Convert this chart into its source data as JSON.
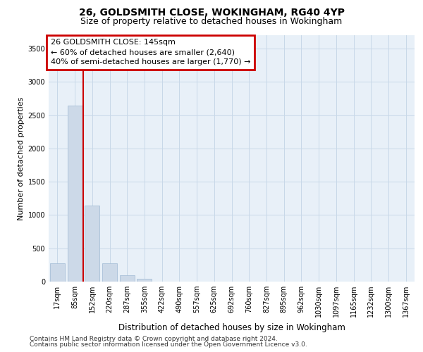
{
  "title_line1": "26, GOLDSMITH CLOSE, WOKINGHAM, RG40 4YP",
  "title_line2": "Size of property relative to detached houses in Wokingham",
  "xlabel": "Distribution of detached houses by size in Wokingham",
  "ylabel": "Number of detached properties",
  "bar_color": "#ccd9e8",
  "bar_edge_color": "#a8c0d8",
  "grid_color": "#c8d8e8",
  "background_color": "#e8f0f8",
  "annotation_text": "26 GOLDSMITH CLOSE: 145sqm\n← 60% of detached houses are smaller (2,640)\n40% of semi-detached houses are larger (1,770) →",
  "vline_color": "#cc0000",
  "vline_x": 1.5,
  "categories": [
    "17sqm",
    "85sqm",
    "152sqm",
    "220sqm",
    "287sqm",
    "355sqm",
    "422sqm",
    "490sqm",
    "557sqm",
    "625sqm",
    "692sqm",
    "760sqm",
    "827sqm",
    "895sqm",
    "962sqm",
    "1030sqm",
    "1097sqm",
    "1165sqm",
    "1232sqm",
    "1300sqm",
    "1367sqm"
  ],
  "values": [
    275,
    2640,
    1140,
    275,
    90,
    40,
    0,
    0,
    0,
    0,
    0,
    0,
    0,
    0,
    0,
    0,
    0,
    0,
    0,
    0,
    0
  ],
  "ylim": [
    0,
    3700
  ],
  "yticks": [
    0,
    500,
    1000,
    1500,
    2000,
    2500,
    3000,
    3500
  ],
  "footnote_line1": "Contains HM Land Registry data © Crown copyright and database right 2024.",
  "footnote_line2": "Contains public sector information licensed under the Open Government Licence v3.0.",
  "title_fontsize": 10,
  "subtitle_fontsize": 9,
  "tick_fontsize": 7,
  "ylabel_fontsize": 8,
  "xlabel_fontsize": 8.5,
  "annot_fontsize": 8,
  "footnote_fontsize": 6.5
}
